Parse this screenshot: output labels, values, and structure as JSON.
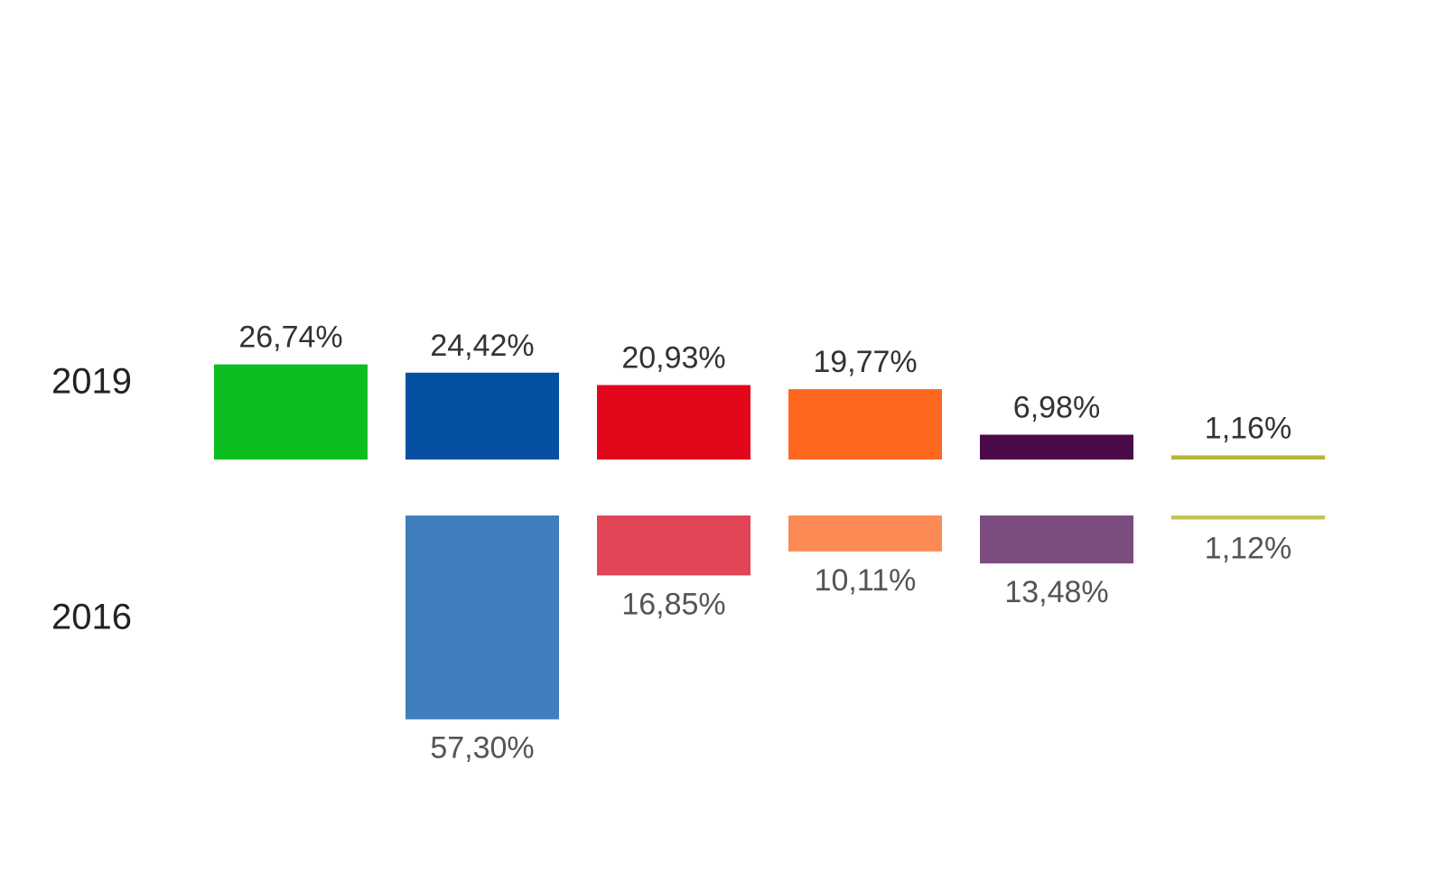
{
  "chart_data": {
    "type": "bar",
    "categories": [
      null,
      null,
      null,
      null,
      null,
      null
    ],
    "series": [
      {
        "name": "2019",
        "values": [
          26.74,
          24.42,
          20.93,
          19.77,
          6.98,
          1.16
        ],
        "value_labels": [
          "26,74%",
          "24,42%",
          "20,93%",
          "19,77%",
          "6,98%",
          "1,16%"
        ],
        "colors": [
          "#0abf1f",
          "#0550a0",
          "#e2061b",
          "#fd6720",
          "#4b0a4a",
          "#b5b534"
        ]
      },
      {
        "name": "2016",
        "values": [
          null,
          57.3,
          16.85,
          10.11,
          13.48,
          1.12
        ],
        "value_labels": [
          null,
          "57,30%",
          "16,85%",
          "10,11%",
          "13,48%",
          "1,12%"
        ],
        "colors": [
          null,
          "#407fbd",
          "#e24556",
          "#fb8a54",
          "#7c4c80",
          "#c2c255"
        ]
      }
    ]
  }
}
